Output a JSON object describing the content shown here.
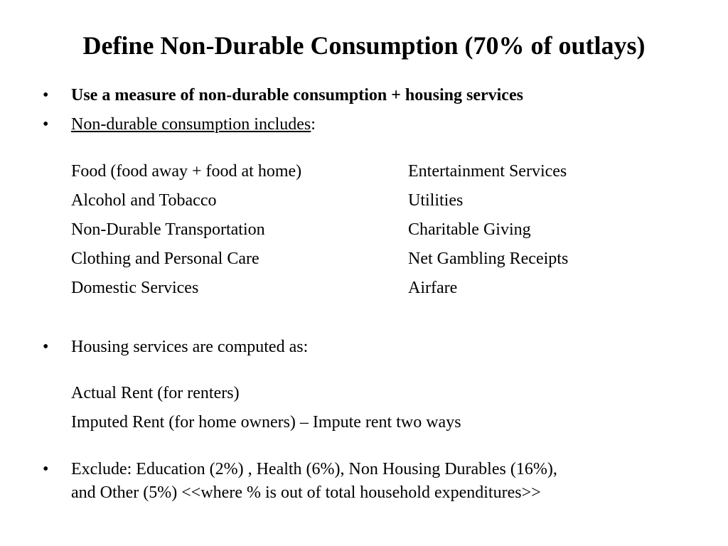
{
  "title": "Define Non-Durable Consumption (70% of outlays)",
  "bullets": {
    "b1": "Use a measure of non-durable consumption + housing services",
    "b2_underlined": "Non-durable consumption includes",
    "b2_suffix": ":",
    "b3": "Housing services are computed as:",
    "b4_line1": "Exclude:  Education  (2%) , Health (6%), Non Housing Durables (16%),",
    "b4_line2": "and Other (5%)  <<where % is out of total household expenditures>>"
  },
  "bullet_symbol": "•",
  "nondurables_left": [
    "Food (food away + food at home)",
    "Alcohol and Tobacco",
    "Non-Durable Transportation",
    "Clothing and Personal Care",
    "Domestic Services"
  ],
  "nondurables_right": [
    "Entertainment Services",
    "Utilities",
    "Charitable Giving",
    "Net Gambling Receipts",
    "Airfare"
  ],
  "housing_items": [
    "Actual Rent (for renters)",
    "Imputed Rent (for home owners) – Impute rent two ways"
  ]
}
